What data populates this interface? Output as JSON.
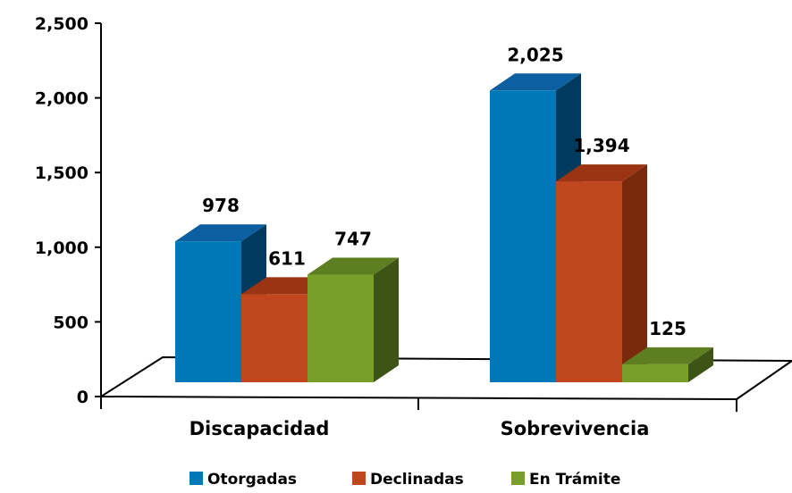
{
  "chart_data": {
    "type": "bar",
    "categories": [
      "Discapacidad",
      "Sobrevivencia"
    ],
    "series": [
      {
        "name": "Otorgadas",
        "values": [
          978,
          2025
        ],
        "color": "#0077B6",
        "side_color": "#003A5C",
        "top_color": "#0C5FA0"
      },
      {
        "name": "Declinadas",
        "values": [
          611,
          1394
        ],
        "color": "#C0461E",
        "side_color": "#7A2A0C",
        "top_color": "#9A3412"
      },
      {
        "name": "En Trámite",
        "values": [
          747,
          125
        ],
        "color": "#7A9E2A",
        "side_color": "#3C5416",
        "top_color": "#5E7E22"
      }
    ],
    "data_labels": [
      [
        "978",
        "2,025"
      ],
      [
        "611",
        "1,394"
      ],
      [
        "747",
        "125"
      ]
    ],
    "ylim": [
      0,
      2500
    ],
    "yticks": [
      "0",
      "500",
      "1,000",
      "1,500",
      "2,000",
      "2,500"
    ],
    "ytick_values": [
      0,
      500,
      1000,
      1500,
      2000,
      2500
    ],
    "grid": false,
    "legend_position": "bottom"
  }
}
